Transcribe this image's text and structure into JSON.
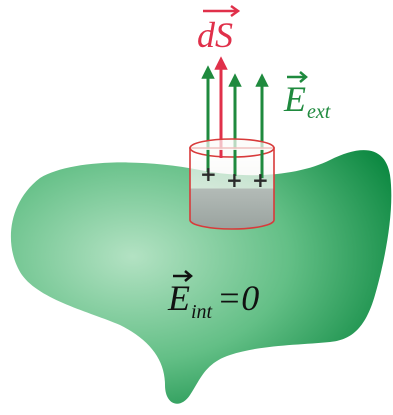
{
  "labels": {
    "ds_symbol": "dS",
    "e_ext_symbol": "E",
    "e_ext_subscript": "ext",
    "e_int_symbol": "E",
    "e_int_subscript": "int",
    "e_int_equation": "=0"
  },
  "charge_signs": [
    "+",
    "+",
    "+"
  ],
  "colors": {
    "ds_vector": "#e0304a",
    "field_lines": "#1f8a3e",
    "conductor_light": "#a6dcb9",
    "conductor_dark": "#138a44",
    "cylinder_outline": "#d83a3a",
    "cylinder_inside": "#a9b2ae",
    "equation_text": "#111111"
  }
}
